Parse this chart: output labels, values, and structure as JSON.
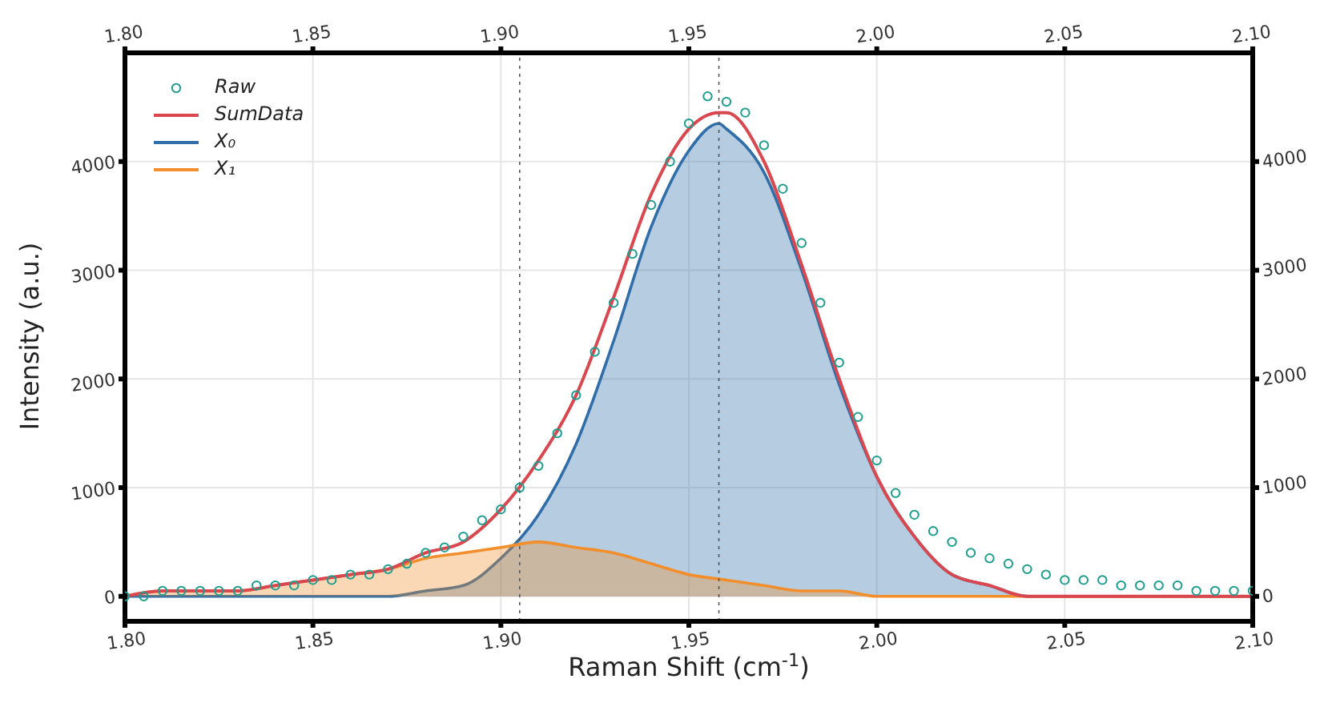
{
  "chart_data": {
    "type": "line",
    "xlabel": "Raman Shift (cm$^{-1}$)",
    "ylabel": "Intensity (a.u.)",
    "xlim": [
      1.8,
      2.1
    ],
    "xticks": [
      {
        "value": 1.8,
        "label": "1.80"
      },
      {
        "value": 1.85,
        "label": "1.85"
      },
      {
        "value": 1.9,
        "label": "1.90"
      },
      {
        "value": 1.95,
        "label": "1.95"
      },
      {
        "value": 2.0,
        "label": "2.00"
      },
      {
        "value": 2.05,
        "label": "2.05"
      },
      {
        "value": 2.1,
        "label": "2.10"
      }
    ],
    "x2lim": [
      1.8,
      2.1
    ],
    "x2ticks": [
      {
        "value": 1.8,
        "label": "1.80"
      },
      {
        "value": 1.85,
        "label": "1.85"
      },
      {
        "value": 1.9,
        "label": "1.90"
      },
      {
        "value": 1.95,
        "label": "1.95"
      },
      {
        "value": 2.0,
        "label": "2.00"
      },
      {
        "value": 2.05,
        "label": "2.05"
      },
      {
        "value": 2.1,
        "label": "2.10"
      }
    ],
    "ylim": [
      -230,
      5000
    ],
    "yticks": [
      0,
      1000,
      2000,
      3000,
      4000
    ],
    "y2lim": [
      -230,
      5000
    ],
    "y2ticks": [
      0,
      1000,
      2000,
      3000,
      4000
    ],
    "grid": true,
    "legend": "top left",
    "ref_lines": [
      {
        "axis": "x",
        "value": 1.958,
        "color": "#555555",
        "line_style": "dotted"
      },
      {
        "axis": "x",
        "value": 1.905,
        "color": "#555555",
        "line_style": "dotted"
      }
    ],
    "series": [
      {
        "name": "Raw",
        "type": "scatter",
        "marker": "circle",
        "color": "#1f9e8f",
        "x": [
          1.8,
          1.805,
          1.81,
          1.815,
          1.82,
          1.825,
          1.83,
          1.835,
          1.84,
          1.845,
          1.85,
          1.855,
          1.86,
          1.865,
          1.87,
          1.875,
          1.88,
          1.885,
          1.89,
          1.895,
          1.9,
          1.905,
          1.91,
          1.915,
          1.92,
          1.925,
          1.93,
          1.935,
          1.94,
          1.945,
          1.95,
          1.955,
          1.96,
          1.965,
          1.97,
          1.975,
          1.98,
          1.985,
          1.99,
          1.995,
          2.0,
          2.005,
          2.01,
          2.015,
          2.02,
          2.025,
          2.03,
          2.035,
          2.04,
          2.045,
          2.05,
          2.055,
          2.06,
          2.065,
          2.07,
          2.075,
          2.08,
          2.085,
          2.09,
          2.095,
          2.1
        ],
        "values": [
          0,
          0,
          50,
          50,
          50,
          50,
          50,
          100,
          100,
          100,
          150,
          150,
          200,
          200,
          250,
          300,
          400,
          450,
          550,
          700,
          800,
          1000,
          1200,
          1500,
          1850,
          2250,
          2700,
          3150,
          3600,
          4000,
          4350,
          4600,
          4550,
          4450,
          4150,
          3750,
          3250,
          2700,
          2150,
          1650,
          1250,
          950,
          750,
          600,
          500,
          400,
          350,
          300,
          250,
          200,
          150,
          150,
          150,
          100,
          100,
          100,
          100,
          50,
          50,
          50,
          50
        ]
      },
      {
        "name": "SumData",
        "type": "line",
        "color": "#d9474f",
        "x": [
          1.8,
          1.81,
          1.82,
          1.83,
          1.84,
          1.85,
          1.86,
          1.87,
          1.88,
          1.89,
          1.9,
          1.91,
          1.92,
          1.93,
          1.94,
          1.95,
          1.958,
          1.96,
          1.97,
          1.98,
          1.99,
          2.0,
          2.01,
          2.02,
          2.03,
          2.04,
          2.05,
          2.06,
          2.08,
          2.1
        ],
        "values": [
          0,
          50,
          50,
          50,
          100,
          150,
          200,
          250,
          400,
          500,
          800,
          1250,
          1850,
          2750,
          3700,
          4300,
          4450,
          4450,
          4000,
          3050,
          2000,
          1100,
          550,
          200,
          100,
          0,
          0,
          0,
          0,
          0
        ]
      },
      {
        "name": "X₀",
        "type": "area",
        "color": "#2f6ea8",
        "x": [
          1.8,
          1.87,
          1.88,
          1.89,
          1.9,
          1.91,
          1.92,
          1.93,
          1.94,
          1.95,
          1.958,
          1.96,
          1.97,
          1.98,
          1.99,
          2.0,
          2.01,
          2.02,
          2.03,
          2.04,
          2.05,
          2.06,
          2.1
        ],
        "values": [
          0,
          0,
          50,
          100,
          350,
          750,
          1400,
          2350,
          3400,
          4100,
          4350,
          4300,
          3900,
          3000,
          1950,
          1100,
          550,
          200,
          100,
          0,
          0,
          0,
          0
        ]
      },
      {
        "name": "X₁",
        "type": "area",
        "color": "#f28e2b",
        "x": [
          1.8,
          1.81,
          1.82,
          1.83,
          1.84,
          1.85,
          1.86,
          1.87,
          1.88,
          1.89,
          1.9,
          1.91,
          1.92,
          1.93,
          1.94,
          1.95,
          1.96,
          1.97,
          1.98,
          1.99,
          2.0,
          2.01,
          2.02,
          2.03,
          2.04,
          2.05,
          2.06,
          2.08,
          2.1
        ],
        "values": [
          0,
          50,
          50,
          50,
          100,
          150,
          200,
          250,
          350,
          400,
          450,
          500,
          450,
          400,
          300,
          200,
          150,
          100,
          50,
          50,
          0,
          0,
          0,
          0,
          0,
          0,
          0,
          0,
          0
        ]
      }
    ]
  }
}
